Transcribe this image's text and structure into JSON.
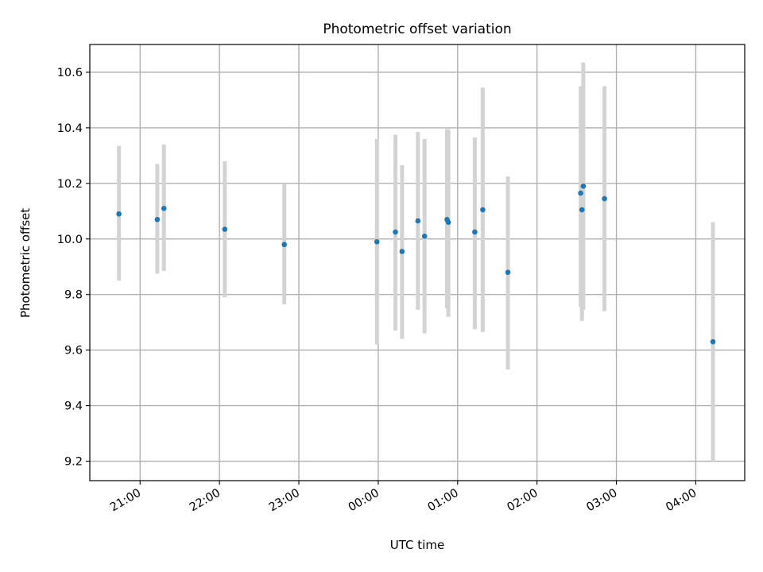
{
  "colors": {
    "point": "#1f77b4",
    "errorbar": "#d3d3d3",
    "grid": "#b0b0b0",
    "frame": "#000000"
  },
  "chart_data": {
    "type": "scatter",
    "title": "Photometric offset variation",
    "xlabel": "UTC time",
    "ylabel": "Photometric offset",
    "grid": true,
    "x_axis": {
      "kind": "time",
      "format": "HH:MM",
      "range": [
        "20:22",
        "04:37"
      ],
      "ticks": [
        "21:00",
        "22:00",
        "23:00",
        "00:00",
        "01:00",
        "02:00",
        "03:00",
        "04:00"
      ]
    },
    "y_axis": {
      "range": [
        9.13,
        10.7
      ],
      "ticks": [
        9.2,
        9.4,
        9.6,
        9.8,
        10.0,
        10.2,
        10.4,
        10.6
      ],
      "tick_labels": [
        "9.2",
        "9.4",
        "9.6",
        "9.8",
        "10.0",
        "10.2",
        "10.4",
        "10.6"
      ]
    },
    "series": [
      {
        "errorbars": true,
        "points": [
          {
            "x": "20:44",
            "y": 10.09,
            "ylow": 9.85,
            "yhigh": 10.335
          },
          {
            "x": "21:13",
            "y": 10.07,
            "ylow": 9.875,
            "yhigh": 10.27
          },
          {
            "x": "21:18",
            "y": 10.11,
            "ylow": 9.885,
            "yhigh": 10.34
          },
          {
            "x": "22:04",
            "y": 10.035,
            "ylow": 9.79,
            "yhigh": 10.28
          },
          {
            "x": "22:49",
            "y": 9.98,
            "ylow": 9.765,
            "yhigh": 10.2
          },
          {
            "x": "23:59",
            "y": 9.99,
            "ylow": 9.62,
            "yhigh": 10.36
          },
          {
            "x": "00:13",
            "y": 10.025,
            "ylow": 9.67,
            "yhigh": 10.375
          },
          {
            "x": "00:18",
            "y": 9.955,
            "ylow": 9.64,
            "yhigh": 10.265
          },
          {
            "x": "00:30",
            "y": 10.065,
            "ylow": 9.745,
            "yhigh": 10.385
          },
          {
            "x": "00:35",
            "y": 10.01,
            "ylow": 9.66,
            "yhigh": 10.36
          },
          {
            "x": "00:52",
            "y": 10.07,
            "ylow": 9.75,
            "yhigh": 10.395
          },
          {
            "x": "00:53",
            "y": 10.06,
            "ylow": 9.72,
            "yhigh": 10.395
          },
          {
            "x": "01:13",
            "y": 10.025,
            "ylow": 9.675,
            "yhigh": 10.365
          },
          {
            "x": "01:19",
            "y": 10.105,
            "ylow": 9.665,
            "yhigh": 10.545
          },
          {
            "x": "01:38",
            "y": 9.88,
            "ylow": 9.53,
            "yhigh": 10.225
          },
          {
            "x": "02:33",
            "y": 10.165,
            "ylow": 9.755,
            "yhigh": 10.55
          },
          {
            "x": "02:34",
            "y": 10.105,
            "ylow": 9.705,
            "yhigh": 10.545
          },
          {
            "x": "02:35",
            "y": 10.19,
            "ylow": 9.745,
            "yhigh": 10.635
          },
          {
            "x": "02:51",
            "y": 10.145,
            "ylow": 9.74,
            "yhigh": 10.55
          },
          {
            "x": "04:13",
            "y": 9.63,
            "ylow": 9.2,
            "yhigh": 10.06
          }
        ]
      }
    ]
  }
}
